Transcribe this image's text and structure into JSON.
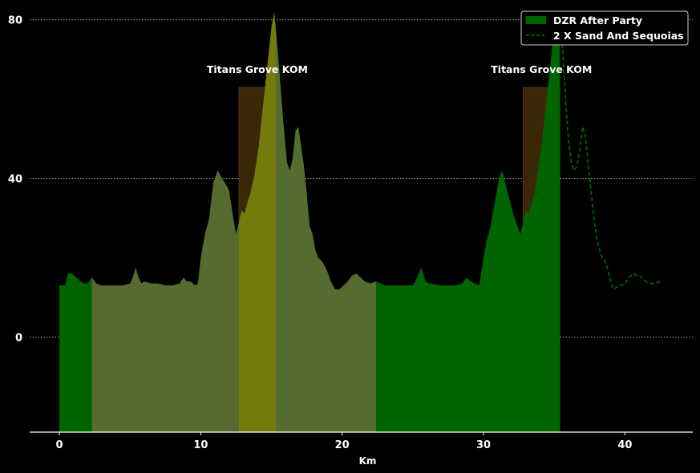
{
  "chart_data": {
    "type": "area",
    "title": "",
    "xlabel": "Km",
    "ylabel": "",
    "xlim": [
      -2.1,
      44.8
    ],
    "ylim": [
      -24,
      85
    ],
    "xticks": [
      "0",
      "10",
      "20",
      "30",
      "40"
    ],
    "yticks": [
      "0",
      "40",
      "80"
    ],
    "grid": "horizontal dotted",
    "legend": "top-right",
    "colors": {
      "background": "#000000",
      "area": "#006400",
      "highlight": "#556b2f",
      "highlight_overlay": "#808000",
      "segment": "#3a2705",
      "dashed_line": "#006400",
      "grid": "#bbbbbb",
      "text": "#ffffff"
    },
    "segments": [
      {
        "label": "Titans Grove KOM",
        "x_start": 12.7,
        "x_end": 15.3
      },
      {
        "label": "Titans Grove KOM",
        "x_start": 32.8,
        "x_end": 35.4
      }
    ],
    "highlight_range": [
      2.3,
      22.4
    ],
    "series": [
      {
        "name": "DZR After Party",
        "style": "filled area",
        "x": [
          0,
          0.4,
          0.6,
          0.9,
          1.2,
          1.5,
          1.8,
          2.0,
          2.3,
          2.6,
          3,
          3.5,
          4,
          4.5,
          5,
          5.2,
          5.4,
          5.6,
          5.8,
          6,
          6.5,
          7,
          7.5,
          8,
          8.5,
          8.8,
          9,
          9.3,
          9.6,
          9.8,
          10,
          10.3,
          10.6,
          10.9,
          11.2,
          11.5,
          11.7,
          12,
          12.3,
          12.5,
          12.7,
          12.9,
          13.1,
          13.3,
          13.5,
          13.8,
          14.1,
          14.4,
          14.7,
          15,
          15.2,
          15.5,
          15.8,
          16.1,
          16.3,
          16.5,
          16.7,
          16.9,
          17.1,
          17.3,
          17.5,
          17.7,
          17.9,
          18.1,
          18.3,
          18.6,
          18.9,
          19.2,
          19.5,
          19.8,
          20.1,
          20.4,
          20.7,
          21,
          21.3,
          21.6,
          22,
          22.4,
          23,
          24,
          25,
          25.3,
          25.6,
          25.9,
          26.2,
          27,
          28,
          28.5,
          28.8,
          29.1,
          29.4,
          29.7,
          30,
          30.2,
          30.5,
          30.8,
          31.1,
          31.3,
          31.6,
          31.9,
          32.1,
          32.4,
          32.6,
          32.8,
          33.0,
          33.2,
          33.4,
          33.6,
          33.8,
          34.1,
          34.4,
          34.7,
          35.0,
          35.3,
          35.4
        ],
        "y": [
          13,
          13,
          16,
          16,
          15,
          14,
          13.5,
          13.5,
          15,
          13.5,
          13,
          13,
          13,
          13,
          13.5,
          15,
          17.5,
          15,
          13.5,
          14,
          13.5,
          13.5,
          13,
          13,
          13.5,
          15,
          14,
          14,
          13,
          13.5,
          20,
          26,
          30,
          39,
          42,
          40,
          39,
          37,
          30,
          26,
          29,
          32,
          31,
          34,
          36,
          41,
          48,
          58,
          68,
          78,
          82,
          70,
          56,
          44,
          42,
          45,
          52,
          53,
          48,
          43,
          36,
          28,
          26,
          22,
          20,
          19,
          17,
          14,
          12,
          12,
          13,
          14,
          15.5,
          16,
          15,
          14,
          13.5,
          14,
          13,
          13,
          13,
          15,
          17.5,
          14,
          13.5,
          13,
          13,
          13.5,
          15,
          14,
          13.5,
          13,
          20,
          24,
          28,
          34,
          40,
          42,
          38,
          34,
          31,
          28,
          26,
          29,
          32,
          31,
          34,
          36,
          41,
          48,
          58,
          68,
          78,
          82,
          82
        ]
      },
      {
        "name": "2 X Sand And Sequoias",
        "style": "dashed line",
        "x": [
          35.4,
          35.6,
          35.8,
          36.0,
          36.2,
          36.4,
          36.6,
          36.8,
          37.0,
          37.2,
          37.4,
          37.6,
          37.8,
          38.0,
          38.2,
          38.4,
          38.6,
          38.8,
          39.0,
          39.2,
          39.4,
          39.6,
          39.8,
          40.0,
          40.3,
          40.6,
          40.9,
          41.2,
          41.5,
          41.8,
          42.1,
          42.5
        ],
        "y": [
          82,
          72,
          60,
          50,
          44,
          42,
          43,
          47,
          53,
          51,
          44,
          37,
          30,
          25,
          22,
          20,
          19,
          17,
          14,
          12,
          12.5,
          13,
          13,
          13.5,
          15,
          16,
          15.5,
          15,
          14,
          13.5,
          13.5,
          14
        ]
      }
    ]
  }
}
